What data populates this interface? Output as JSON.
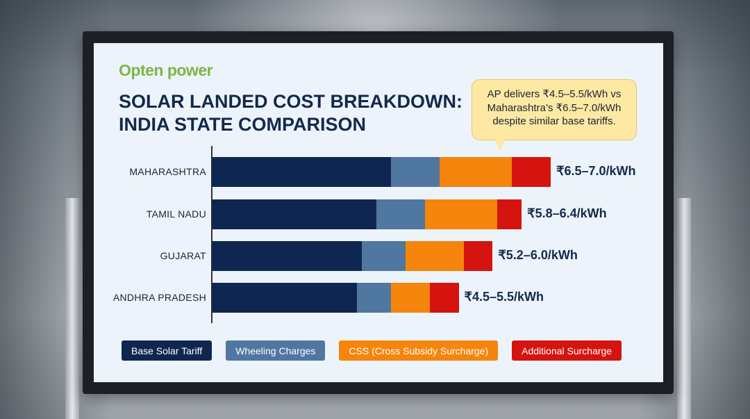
{
  "logo": "Opten power",
  "title_line1": "SOLAR LANDED COST BREAKDOWN:",
  "title_line2": "INDIA STATE COMPARISON",
  "callout": "AP delivers ₹4.5–5.5/kWh vs Maharashtra’s ₹6.5–7.0/kWh despite similar base tariffs.",
  "colors": {
    "base": "#0f2750",
    "wheeling": "#4f77a0",
    "css": "#f5850c",
    "additional": "#d5130f"
  },
  "chart_data": {
    "type": "bar",
    "orientation": "horizontal",
    "stacked": true,
    "title": "SOLAR LANDED COST BREAKDOWN: INDIA STATE COMPARISON",
    "categories": [
      "MAHARASHTRA",
      "TAMIL NADU",
      "GUJARAT",
      "ANDHRA PRADESH"
    ],
    "series": [
      {
        "name": "Base Solar Tariff",
        "values": [
          3.7,
          3.4,
          3.1,
          3.0
        ]
      },
      {
        "name": "Wheeling Charges",
        "values": [
          1.0,
          1.0,
          0.9,
          0.7
        ]
      },
      {
        "name": "CSS (Cross Subsidy Surcharge)",
        "values": [
          1.5,
          1.5,
          1.2,
          0.8
        ]
      },
      {
        "name": "Additional Surcharge",
        "values": [
          0.8,
          0.5,
          0.6,
          0.6
        ]
      }
    ],
    "data_labels": [
      "₹6.5–7.0/kWh",
      "₹5.8–6.4/kWh",
      "₹5.2–6.0/kWh",
      "₹4.5–5.5/kWh"
    ],
    "xlim": [
      0,
      7.0
    ],
    "grid": false,
    "legend": "bottom"
  }
}
